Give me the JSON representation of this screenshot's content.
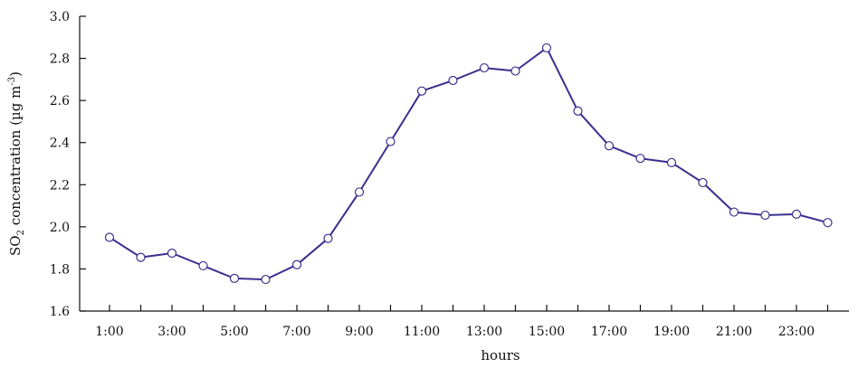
{
  "chart_data": {
    "type": "line",
    "title": "",
    "xlabel": "hours",
    "ylabel": {
      "prefix": "SO",
      "subscript": "2",
      "middle": " concentration (µg m",
      "superscript": "-3",
      "suffix": ")"
    },
    "ylim": [
      1.6,
      3.0
    ],
    "yticks": [
      "1.6",
      "1.8",
      "2.0",
      "2.2",
      "2.4",
      "2.6",
      "2.8",
      "3.0"
    ],
    "xticks": [
      "1:00",
      "3:00",
      "5:00",
      "7:00",
      "9:00",
      "11:00",
      "13:00",
      "15:00",
      "17:00",
      "19:00",
      "21:00",
      "23:00"
    ],
    "grid": false,
    "x": [
      "1:00",
      "2:00",
      "3:00",
      "4:00",
      "5:00",
      "6:00",
      "7:00",
      "8:00",
      "9:00",
      "10:00",
      "11:00",
      "12:00",
      "13:00",
      "14:00",
      "15:00",
      "16:00",
      "17:00",
      "18:00",
      "19:00",
      "20:00",
      "21:00",
      "22:00",
      "23:00",
      "24:00"
    ],
    "series": [
      {
        "values": [
          1.95,
          1.855,
          1.875,
          1.815,
          1.755,
          1.75,
          1.82,
          1.945,
          2.165,
          2.405,
          2.645,
          2.695,
          2.755,
          2.74,
          2.85,
          2.55,
          2.385,
          2.325,
          2.305,
          2.21,
          2.07,
          2.055,
          2.06,
          2.02
        ]
      }
    ],
    "colors": {
      "line": "#3b2f8f",
      "marker_fill": "#ffffff",
      "marker_stroke": "#3b2f8f",
      "axis": "#111111"
    }
  }
}
